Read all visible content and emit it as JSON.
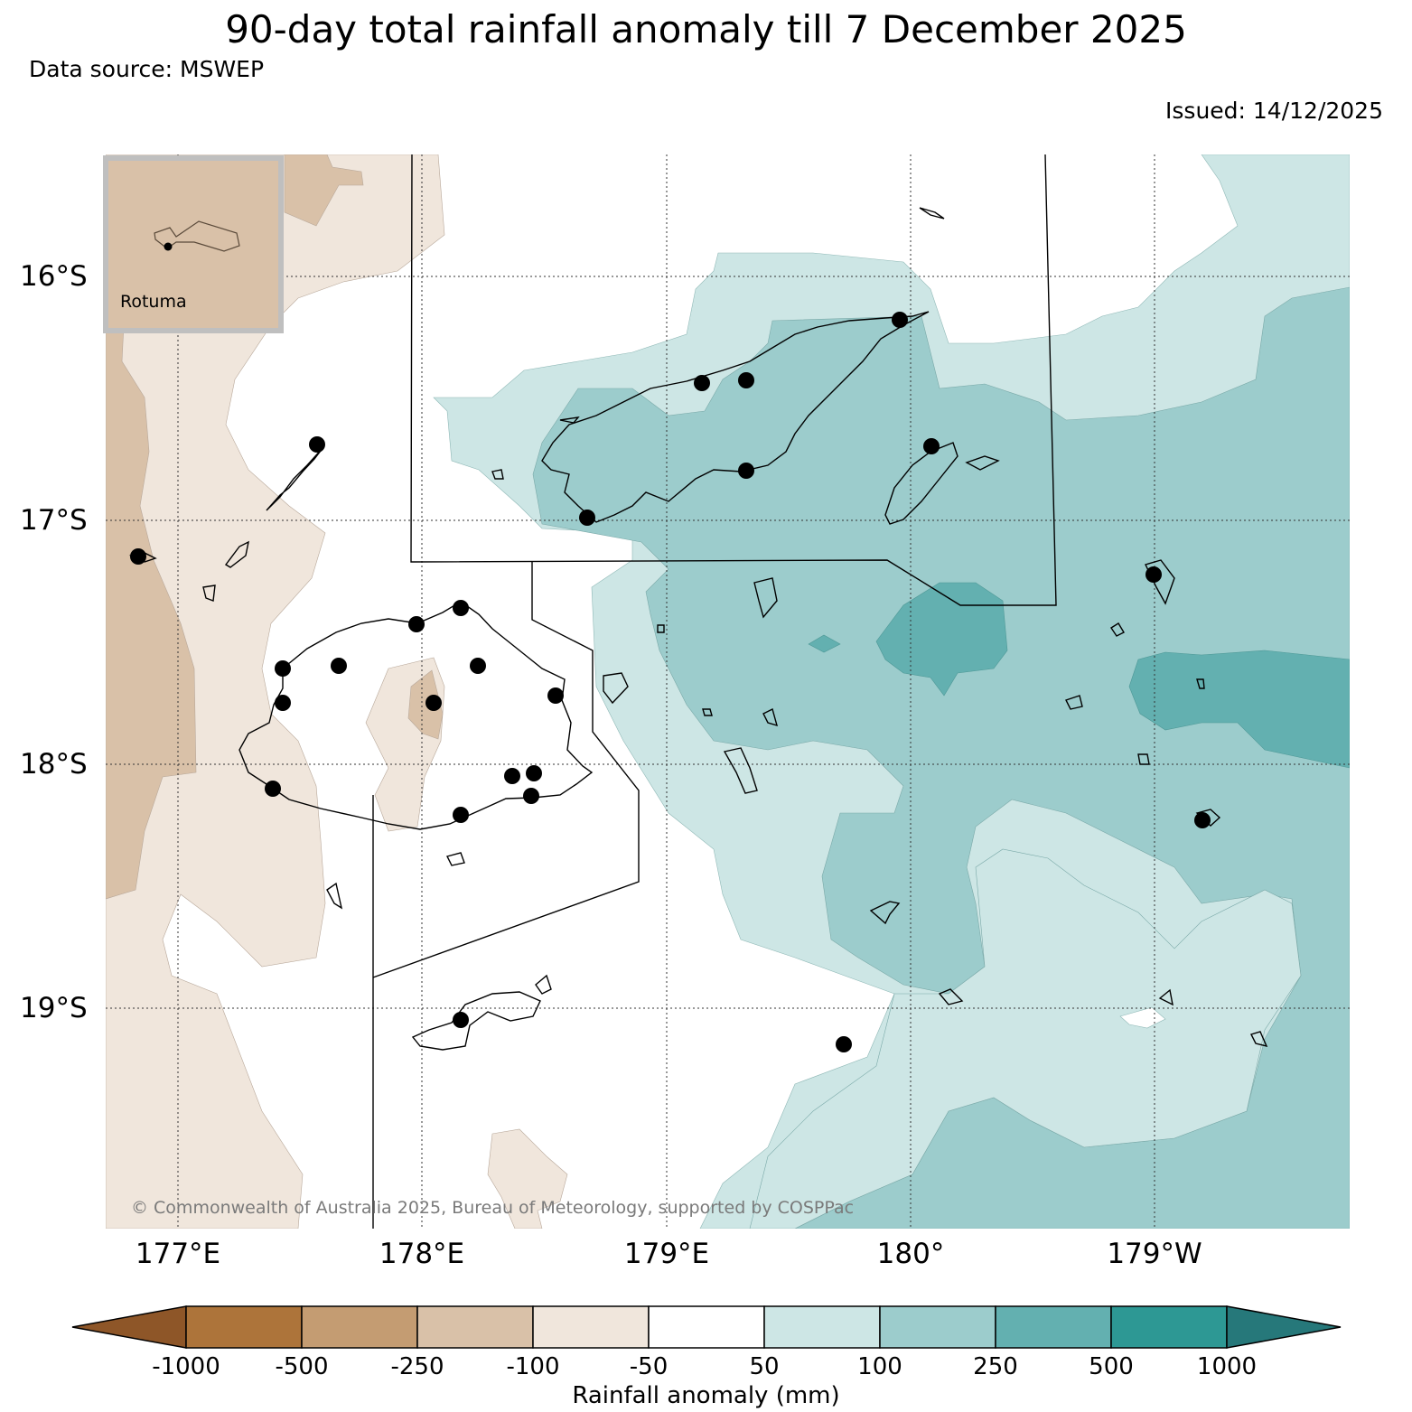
{
  "header": {
    "title": "90-day total rainfall anomaly till 7 December 2025",
    "source": "Data source: MSWEP",
    "issued": "Issued: 14/12/2025"
  },
  "axes": {
    "lat_labels": [
      "16°S",
      "17°S",
      "18°S",
      "19°S"
    ],
    "lon_labels": [
      "177°E",
      "178°E",
      "179°E",
      "180°",
      "179°W"
    ]
  },
  "inset": {
    "label": "Rotuma"
  },
  "copyright": "© Commonwealth of Australia 2025, Bureau of Meteorology, supported by COSPPac",
  "colorbar": {
    "title": "Rainfall anomaly (mm)",
    "ticks": [
      "-1000",
      "-500",
      "-250",
      "-100",
      "-50",
      "50",
      "100",
      "250",
      "500",
      "1000"
    ],
    "colors": [
      "#8e5628",
      "#ad743a",
      "#c49c72",
      "#d9c1a8",
      "#f0e6dc",
      "#ffffff",
      "#cde6e5",
      "#9ccccc",
      "#63b0b0",
      "#2d9894",
      "#26787a"
    ]
  }
}
